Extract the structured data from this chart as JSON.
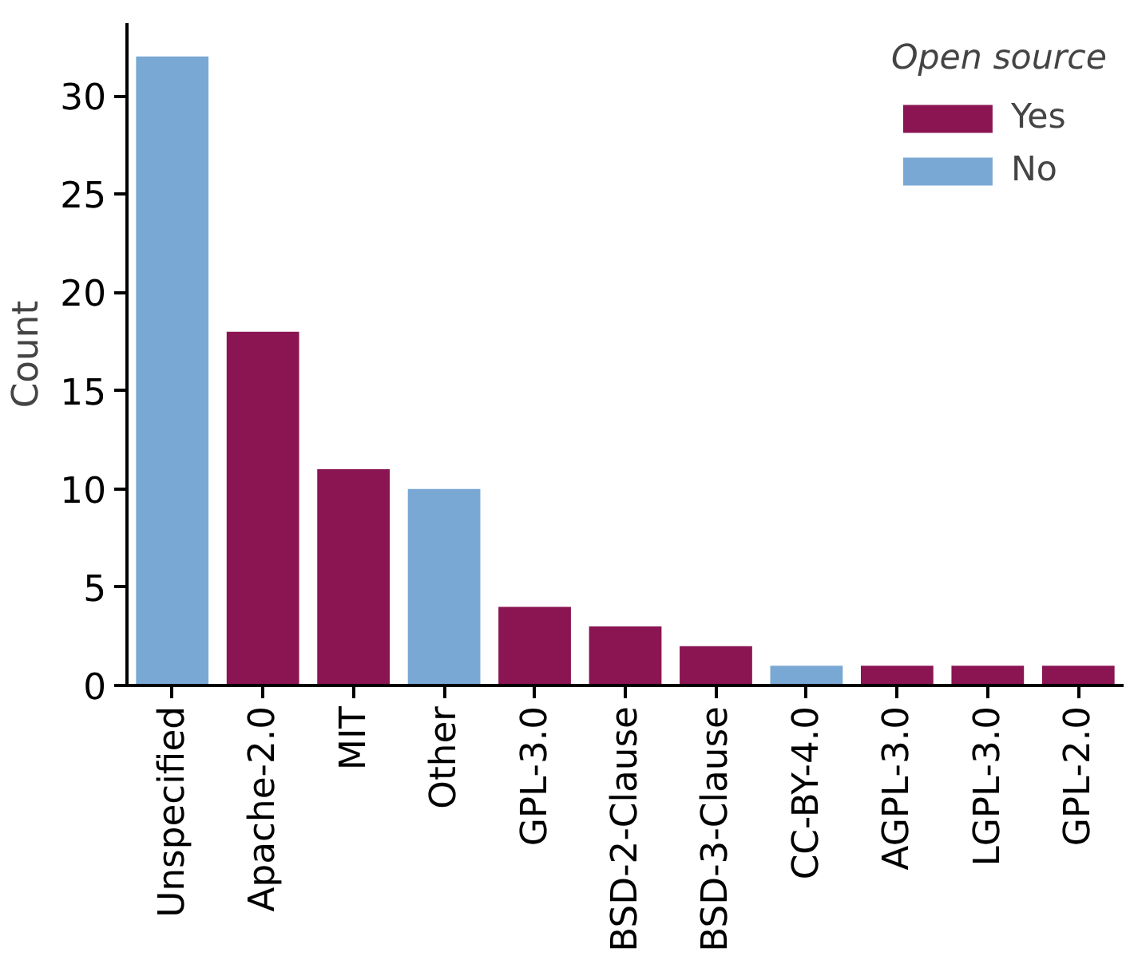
{
  "chart_data": {
    "type": "bar",
    "ylabel": "Count",
    "legend_title": "Open source",
    "categories": [
      "Unspecified",
      "Apache-2.0",
      "MIT",
      "Other",
      "GPL-3.0",
      "BSD-2-Clause",
      "BSD-3-Clause",
      "CC-BY-4.0",
      "AGPL-3.0",
      "LGPL-3.0",
      "GPL-2.0"
    ],
    "series": [
      {
        "name": "Yes",
        "color": "#8b1453",
        "values": [
          null,
          18,
          11,
          null,
          4,
          3,
          2,
          null,
          1,
          1,
          1
        ]
      },
      {
        "name": "No",
        "color": "#7aa8d4",
        "values": [
          32,
          null,
          null,
          10,
          null,
          null,
          null,
          1,
          null,
          null,
          null
        ]
      }
    ],
    "ylim": [
      0,
      33.7
    ],
    "yticks": [
      0,
      5,
      10,
      15,
      20,
      25,
      30
    ],
    "grid": false,
    "legend": "top right"
  }
}
